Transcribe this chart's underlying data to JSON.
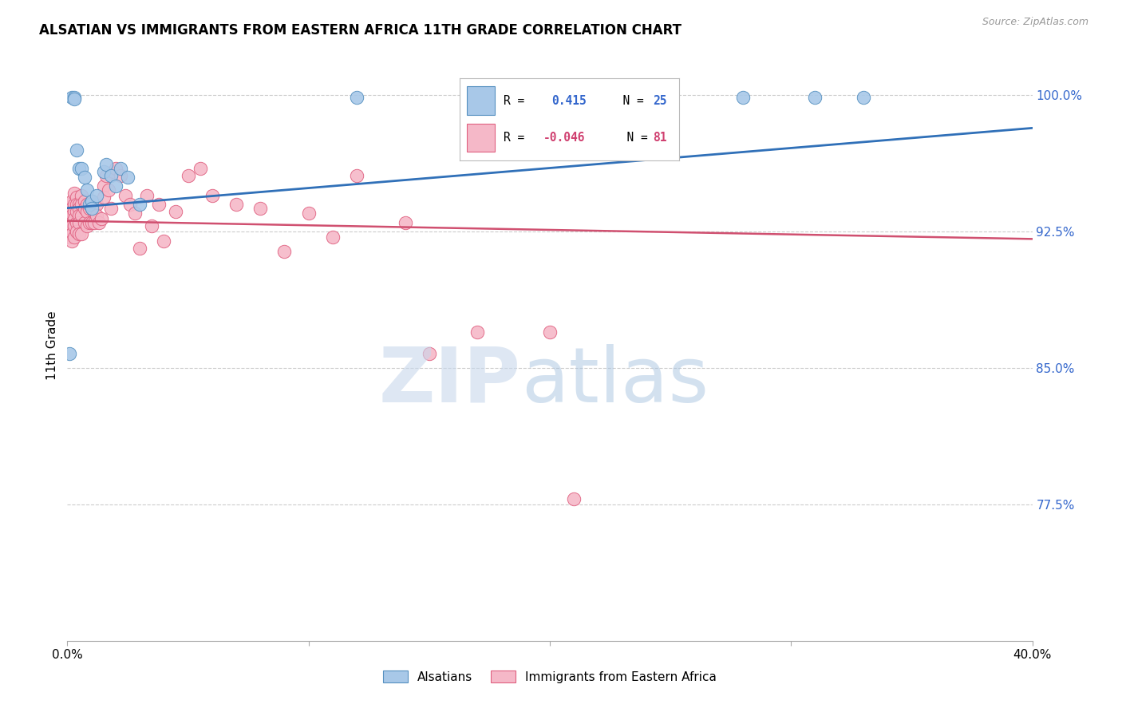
{
  "title": "ALSATIAN VS IMMIGRANTS FROM EASTERN AFRICA 11TH GRADE CORRELATION CHART",
  "source": "Source: ZipAtlas.com",
  "ylabel": "11th Grade",
  "xlim": [
    0.0,
    0.4
  ],
  "ylim": [
    0.7,
    1.025
  ],
  "legend_blue_r": "0.415",
  "legend_blue_n": "25",
  "legend_pink_r": "-0.046",
  "legend_pink_n": "81",
  "blue_color": "#a8c8e8",
  "pink_color": "#f5b8c8",
  "blue_edge_color": "#5590c0",
  "pink_edge_color": "#e06080",
  "blue_line_color": "#3070b8",
  "pink_line_color": "#d05070",
  "ytick_vals": [
    0.775,
    0.85,
    0.925,
    1.0
  ],
  "ytick_labels": [
    "77.5%",
    "85.0%",
    "92.5%",
    "100.0%"
  ],
  "blue_regression": [
    0.938,
    0.982
  ],
  "pink_regression": [
    0.931,
    0.921
  ],
  "alsatian_x": [
    0.001,
    0.002,
    0.003,
    0.003,
    0.004,
    0.005,
    0.006,
    0.007,
    0.008,
    0.009,
    0.01,
    0.01,
    0.012,
    0.015,
    0.016,
    0.018,
    0.02,
    0.022,
    0.025,
    0.03,
    0.12,
    0.22,
    0.28,
    0.31,
    0.33
  ],
  "alsatian_y": [
    0.858,
    0.999,
    0.999,
    0.998,
    0.97,
    0.96,
    0.96,
    0.955,
    0.948,
    0.94,
    0.942,
    0.938,
    0.945,
    0.958,
    0.962,
    0.956,
    0.95,
    0.96,
    0.955,
    0.94,
    0.999,
    0.999,
    0.999,
    0.999,
    0.999
  ],
  "eastern_africa_x": [
    0.001,
    0.001,
    0.001,
    0.001,
    0.001,
    0.001,
    0.002,
    0.002,
    0.002,
    0.002,
    0.002,
    0.002,
    0.002,
    0.003,
    0.003,
    0.003,
    0.003,
    0.003,
    0.003,
    0.004,
    0.004,
    0.004,
    0.004,
    0.004,
    0.005,
    0.005,
    0.005,
    0.005,
    0.005,
    0.006,
    0.006,
    0.006,
    0.006,
    0.007,
    0.007,
    0.007,
    0.008,
    0.008,
    0.008,
    0.009,
    0.009,
    0.01,
    0.01,
    0.01,
    0.011,
    0.011,
    0.012,
    0.012,
    0.013,
    0.014,
    0.015,
    0.015,
    0.016,
    0.017,
    0.018,
    0.019,
    0.02,
    0.022,
    0.024,
    0.026,
    0.028,
    0.03,
    0.033,
    0.035,
    0.038,
    0.04,
    0.045,
    0.05,
    0.055,
    0.06,
    0.07,
    0.08,
    0.09,
    0.1,
    0.11,
    0.12,
    0.14,
    0.15,
    0.17,
    0.2,
    0.21
  ],
  "eastern_africa_y": [
    0.94,
    0.935,
    0.93,
    0.928,
    0.925,
    0.922,
    0.942,
    0.938,
    0.934,
    0.93,
    0.928,
    0.924,
    0.92,
    0.946,
    0.94,
    0.936,
    0.932,
    0.928,
    0.922,
    0.944,
    0.94,
    0.936,
    0.93,
    0.925,
    0.94,
    0.938,
    0.934,
    0.93,
    0.924,
    0.945,
    0.94,
    0.934,
    0.924,
    0.942,
    0.938,
    0.93,
    0.94,
    0.936,
    0.928,
    0.938,
    0.93,
    0.942,
    0.938,
    0.93,
    0.936,
    0.93,
    0.94,
    0.934,
    0.93,
    0.932,
    0.95,
    0.944,
    0.956,
    0.948,
    0.938,
    0.958,
    0.96,
    0.956,
    0.945,
    0.94,
    0.935,
    0.916,
    0.945,
    0.928,
    0.94,
    0.92,
    0.936,
    0.956,
    0.96,
    0.945,
    0.94,
    0.938,
    0.914,
    0.935,
    0.922,
    0.956,
    0.93,
    0.858,
    0.87,
    0.87,
    0.778
  ]
}
